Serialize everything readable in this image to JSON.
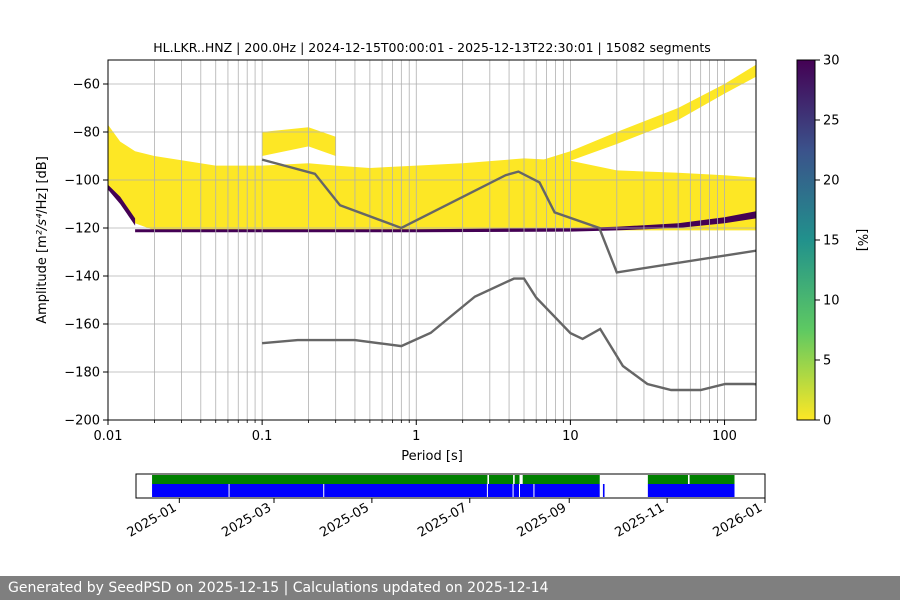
{
  "chart_data": [
    {
      "type": "heatmap",
      "title": "HL.LKR..HNZ | 200.0Hz | 2024-12-15T00:00:01 - 2025-12-13T22:30:01 | 15082 segments",
      "xlabel": "Period [s]",
      "ylabel_main": "Amplitude [m",
      "ylabel_units_tail": "/Hz] [dB]",
      "x_scale": "log",
      "xlim": [
        0.01,
        160
      ],
      "ylim": [
        -200,
        -50
      ],
      "x_ticks": [
        0.01,
        0.1,
        1,
        10,
        100
      ],
      "x_tick_labels": [
        "0.01",
        "0.1",
        "1",
        "10",
        "100"
      ],
      "y_ticks": [
        -200,
        -180,
        -160,
        -140,
        -120,
        -100,
        -80,
        -60
      ],
      "y_tick_labels": [
        "−200",
        "−180",
        "−160",
        "−140",
        "−120",
        "−100",
        "−80",
        "−60"
      ],
      "grid": true,
      "colorbar": {
        "label": "[%]",
        "range": [
          0,
          30
        ],
        "ticks": [
          0,
          5,
          10,
          15,
          20,
          25,
          30
        ],
        "colormap": [
          "#fde725",
          "#5ec962",
          "#21918c",
          "#3b528b",
          "#440154"
        ]
      },
      "probability_bands": [
        {
          "x": [
            0.01,
            0.012,
            0.015,
            0.02,
            0.05,
            0.1,
            0.2,
            0.3,
            0.5,
            1,
            2,
            5,
            10,
            20,
            50,
            100,
            160
          ],
          "upper": [
            -77,
            -84,
            -88,
            -90,
            -94,
            -94,
            -93,
            -94,
            -95,
            -94,
            -93,
            -91,
            -92,
            -96,
            -97,
            -98,
            -99
          ],
          "lower": [
            -103,
            -109,
            -118,
            -121,
            -121,
            -121,
            -121,
            -121,
            -121,
            -121,
            -121,
            -121,
            -121,
            -121,
            -121,
            -121,
            -121
          ],
          "level_percent": 1
        },
        {
          "x": [
            0.1,
            0.2,
            0.3
          ],
          "upper": [
            -80,
            -78,
            -82
          ],
          "lower": [
            -90,
            -86,
            -90
          ],
          "level_percent": 1
        },
        {
          "x": [
            5,
            10,
            20,
            50,
            100,
            160
          ],
          "upper": [
            -94,
            -88,
            -80,
            -70,
            -60,
            -52
          ],
          "lower": [
            -97,
            -92,
            -85,
            -75,
            -64,
            -57
          ],
          "level_percent": 1
        },
        {
          "x": [
            0.015,
            1,
            10,
            20,
            50,
            100,
            160
          ],
          "upper": [
            -120.5,
            -120.5,
            -120,
            -119.5,
            -118,
            -115.5,
            -113
          ],
          "lower": [
            -121.8,
            -121.8,
            -121.5,
            -121,
            -120,
            -118,
            -116
          ],
          "level_percent": 28
        },
        {
          "x": [
            0.01,
            0.012,
            0.015
          ],
          "upper": [
            -102,
            -107,
            -116
          ],
          "lower": [
            -104,
            -110,
            -119
          ],
          "level_percent": 28
        }
      ],
      "series": [
        {
          "name": "NHNM",
          "x": [
            0.1,
            0.22,
            0.32,
            0.8,
            3.8,
            4.6,
            6.3,
            7.9,
            15.4,
            20,
            354.8
          ],
          "values": [
            -91.5,
            -97.4,
            -110.5,
            -120,
            -98,
            -96.5,
            -101,
            -113.5,
            -120,
            -138.5,
            -126
          ]
        },
        {
          "name": "NLNM",
          "x": [
            0.1,
            0.17,
            0.4,
            0.8,
            1.24,
            2.4,
            4.3,
            5,
            6,
            10,
            12,
            15.6,
            21.9,
            31.6,
            45,
            70,
            101,
            154,
            328
          ],
          "values": [
            -168,
            -166.7,
            -166.7,
            -169.2,
            -163.7,
            -148.6,
            -141.1,
            -141.1,
            -149,
            -163.8,
            -166.2,
            -162.1,
            -177.5,
            -185,
            -187.5,
            -187.5,
            -185,
            -185,
            -187.5
          ]
        }
      ]
    },
    {
      "type": "timeline",
      "x_ticks": [
        "2025-01",
        "2025-03",
        "2025-05",
        "2025-07",
        "2025-09",
        "2025-11",
        "2026-01"
      ],
      "xlim": [
        "2024-12-05",
        "2026-01-01"
      ],
      "coverage": {
        "color": "#008000",
        "segments": [
          [
            "2024-12-15",
            "2025-07-12"
          ],
          [
            "2025-07-13",
            "2025-07-28"
          ],
          [
            "2025-07-29",
            "2025-08-01"
          ],
          [
            "2025-08-03",
            "2025-09-20"
          ],
          [
            "2025-10-20",
            "2025-11-14"
          ],
          [
            "2025-11-15",
            "2025-12-13"
          ]
        ]
      },
      "data": {
        "color": "#0000ff",
        "segments": [
          [
            "2024-12-15",
            "2025-09-20"
          ],
          [
            "2025-09-22",
            "2025-09-23"
          ],
          [
            "2025-10-20",
            "2025-12-13"
          ]
        ],
        "gap_marks": [
          "2025-02-01",
          "2025-04-01",
          "2025-07-12",
          "2025-07-28",
          "2025-08-01",
          "2025-08-10"
        ]
      }
    }
  ],
  "footer": {
    "text": "Generated by SeedPSD on 2025-12-15 | Calculations updated on 2025-12-14"
  }
}
